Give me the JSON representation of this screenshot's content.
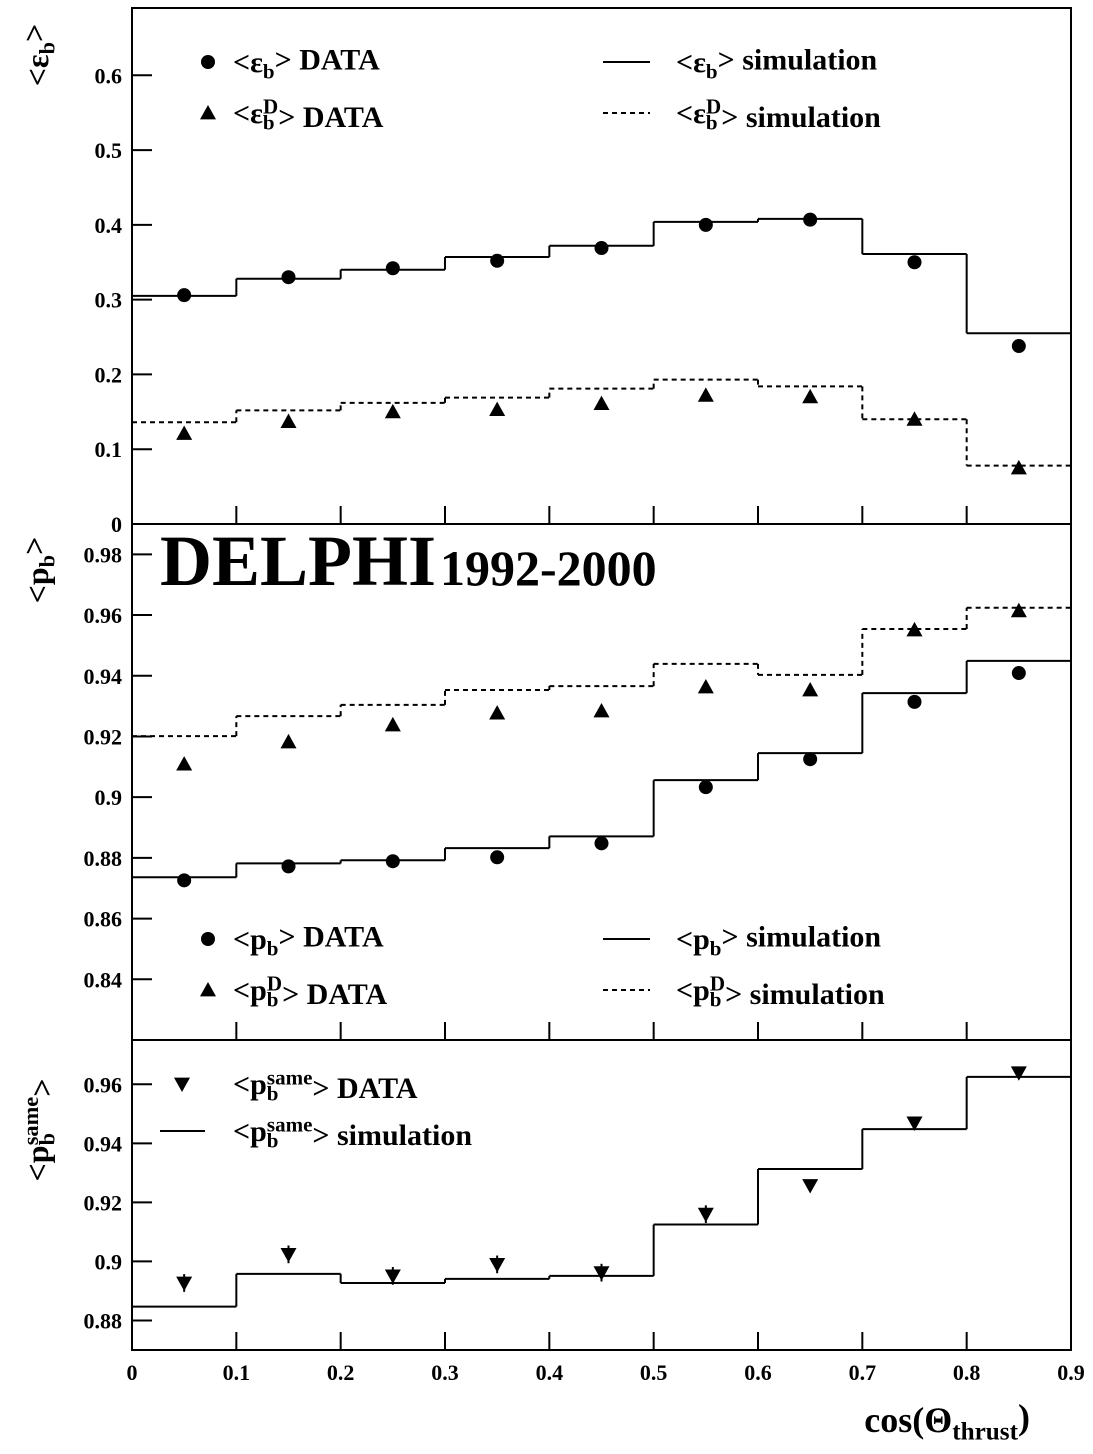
{
  "chart_data": [
    {
      "type": "step",
      "ylabel": "<ε_{b}>",
      "xlim": [
        0,
        0.9
      ],
      "xticks": [
        0,
        0.1,
        0.2,
        0.3,
        0.4,
        0.5,
        0.6,
        0.7,
        0.8,
        0.9
      ],
      "ylim": [
        0,
        0.69
      ],
      "yticks": [
        0,
        0.1,
        0.2,
        0.3,
        0.4,
        0.5,
        0.6
      ],
      "x": [
        0.05,
        0.15,
        0.25,
        0.35,
        0.45,
        0.55,
        0.65,
        0.75,
        0.85
      ],
      "bins": [
        0,
        0.1,
        0.2,
        0.3,
        0.4,
        0.5,
        0.6,
        0.7,
        0.8,
        0.9
      ],
      "legend": "upper",
      "legend_columns": 2,
      "series": [
        {
          "name": "<ε_{b}> DATA",
          "marker": "circle",
          "color": "#000000",
          "values": [
            0.306,
            0.33,
            0.342,
            0.352,
            0.369,
            0.4,
            0.407,
            0.35,
            0.238
          ]
        },
        {
          "name": "<ε_{b}^{D}> DATA",
          "marker": "triangle",
          "color": "#000000",
          "values": [
            0.121,
            0.137,
            0.15,
            0.153,
            0.161,
            0.172,
            0.17,
            0.14,
            0.075
          ]
        },
        {
          "name": "<ε_{b}> simulation",
          "linestyle": "solid",
          "color": "#000000",
          "values": [
            0.305,
            0.328,
            0.34,
            0.357,
            0.372,
            0.404,
            0.408,
            0.361,
            0.255
          ]
        },
        {
          "name": "<ε_{b}^{D}> simulation",
          "linestyle": "dashed",
          "color": "#000000",
          "values": [
            0.136,
            0.152,
            0.162,
            0.169,
            0.181,
            0.193,
            0.184,
            0.14,
            0.078
          ]
        }
      ]
    },
    {
      "type": "step",
      "ylabel": "<p_{b}>",
      "xlim": [
        0,
        0.9
      ],
      "xticks": [
        0,
        0.1,
        0.2,
        0.3,
        0.4,
        0.5,
        0.6,
        0.7,
        0.8,
        0.9
      ],
      "ylim": [
        0.82,
        0.99
      ],
      "yticks": [
        0.84,
        0.86,
        0.88,
        0.9,
        0.92,
        0.94,
        0.96,
        0.98
      ],
      "x": [
        0.05,
        0.15,
        0.25,
        0.35,
        0.45,
        0.55,
        0.65,
        0.75,
        0.85
      ],
      "bins": [
        0,
        0.1,
        0.2,
        0.3,
        0.4,
        0.5,
        0.6,
        0.7,
        0.8,
        0.9
      ],
      "annotations": [
        "DELPHI",
        "1992-2000"
      ],
      "legend": "lower",
      "legend_columns": 2,
      "series": [
        {
          "name": "<p_{b}> DATA",
          "marker": "circle",
          "color": "#000000",
          "values": [
            0.8726,
            0.8772,
            0.8789,
            0.8802,
            0.8848,
            0.9033,
            0.9125,
            0.9314,
            0.9409
          ]
        },
        {
          "name": "<p_{b}^{D}> DATA",
          "marker": "triangle",
          "color": "#000000",
          "values": [
            0.9109,
            0.9182,
            0.9238,
            0.9277,
            0.9284,
            0.9363,
            0.9353,
            0.9551,
            0.9614
          ]
        },
        {
          "name": "<p_{b}> simulation",
          "linestyle": "solid",
          "color": "#000000",
          "values": [
            0.8736,
            0.8782,
            0.8792,
            0.8832,
            0.8871,
            0.9056,
            0.9145,
            0.9343,
            0.9449
          ]
        },
        {
          "name": "<p_{b}^{D}> simulation",
          "linestyle": "dashed",
          "color": "#000000",
          "values": [
            0.9201,
            0.9267,
            0.9304,
            0.9353,
            0.9366,
            0.9439,
            0.9403,
            0.9554,
            0.9624
          ]
        }
      ]
    },
    {
      "type": "step",
      "ylabel": "<p_{b}^{same}>",
      "xlabel": "cos(Θ_{thrust})",
      "xlim": [
        0,
        0.9
      ],
      "xticks": [
        0,
        0.1,
        0.2,
        0.3,
        0.4,
        0.5,
        0.6,
        0.7,
        0.8,
        0.9
      ],
      "ylim": [
        0.87,
        0.975
      ],
      "yticks": [
        0.88,
        0.9,
        0.92,
        0.94,
        0.96
      ],
      "x": [
        0.05,
        0.15,
        0.25,
        0.35,
        0.45,
        0.55,
        0.65,
        0.75,
        0.85
      ],
      "bins": [
        0,
        0.1,
        0.2,
        0.3,
        0.4,
        0.5,
        0.6,
        0.7,
        0.8,
        0.9
      ],
      "legend": "upper",
      "legend_columns": 1,
      "series": [
        {
          "name": "<p_{b}^{same}> DATA",
          "marker": "triangle-down",
          "color": "#000000",
          "values": [
            0.8927,
            0.9024,
            0.8951,
            0.899,
            0.8962,
            0.916,
            0.9257,
            0.9469,
            0.9639
          ],
          "errors": [
            0.003,
            0.003,
            0.003,
            0.003,
            0.003,
            0.003,
            0.002,
            0.002,
            0.002
          ]
        },
        {
          "name": "<p_{b}^{same}> simulation",
          "linestyle": "solid",
          "color": "#000000",
          "values": [
            0.8847,
            0.8958,
            0.8927,
            0.8941,
            0.8951,
            0.9125,
            0.9313,
            0.9448,
            0.9625
          ]
        }
      ]
    }
  ]
}
